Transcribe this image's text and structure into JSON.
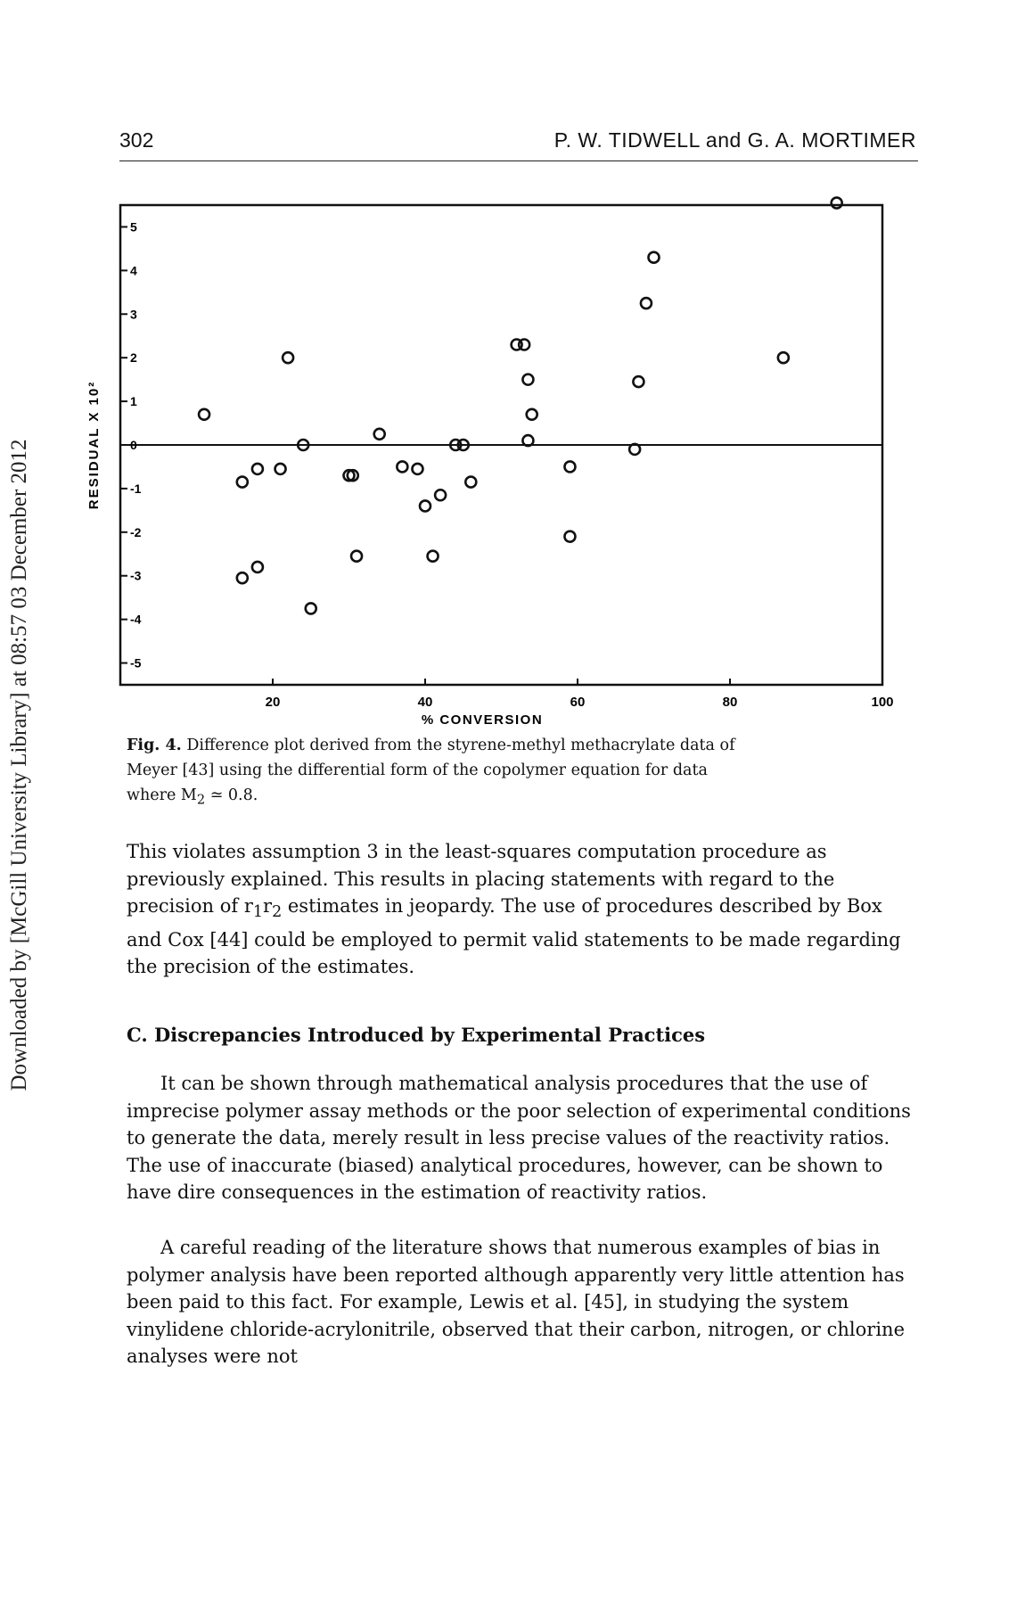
{
  "side_note": "Downloaded by [McGill University Library] at 08:57 03 December 2012",
  "header": {
    "page_number": "302",
    "authors": "P. W. TIDWELL and G. A. MORTIMER"
  },
  "chart_data": {
    "type": "scatter",
    "title": "",
    "xlabel": "% CONVERSION",
    "ylabel": "RESIDUAL X 10²",
    "xlim": [
      0,
      100
    ],
    "ylim": [
      -5.5,
      5.5
    ],
    "x_ticks": [
      20,
      40,
      60,
      80,
      100
    ],
    "x_tick_labels": [
      "20",
      "40",
      "60",
      "80",
      "100"
    ],
    "y_ticks": [
      5,
      4,
      3,
      2,
      1,
      0,
      -1,
      -2,
      -3,
      -4,
      -5
    ],
    "y_tick_labels": [
      "5",
      "4",
      "3",
      "2",
      "1",
      "0",
      "-1",
      "-2",
      "-3",
      "-4",
      "-5"
    ],
    "zero_line": true,
    "grid": false,
    "legend": "none",
    "series": [
      {
        "x": [
          11,
          16,
          18,
          21,
          22,
          16,
          18,
          24,
          25,
          30,
          30.5,
          34,
          37,
          39,
          40,
          42,
          44,
          46,
          45,
          31,
          41,
          52,
          53,
          53.5,
          54,
          53.5,
          59,
          59,
          70,
          69,
          68,
          67.5,
          87,
          94
        ],
        "y": [
          0.7,
          -0.85,
          -0.55,
          -0.55,
          2.0,
          -3.05,
          -2.8,
          0.0,
          -3.75,
          -0.7,
          -0.7,
          0.25,
          -0.5,
          -0.55,
          -1.4,
          -1.15,
          0.0,
          -0.85,
          0.0,
          -2.55,
          -2.55,
          2.3,
          2.3,
          1.5,
          0.7,
          0.1,
          -0.5,
          -2.1,
          4.3,
          3.25,
          1.45,
          -0.1,
          2.0,
          5.55
        ]
      }
    ]
  },
  "caption": {
    "label": "Fig. 4.",
    "lines": [
      "Difference plot derived from the styrene-methyl methacrylate data of",
      "Meyer [43] using the differential form of the copolymer equation for data",
      "where M",
      "2",
      " ≃ 0.8."
    ]
  },
  "body": {
    "p1": {
      "before": "This violates assumption 3 in the least-squares computation procedure as previously explained. This results in placing statements with regard to the precision of ",
      "r": "r",
      "sub1": "1",
      "r2": "r",
      "sub2": "2",
      "after": " estimates in jeopardy. The use of procedures described by Box and Cox [44] could be employed to permit valid statements to be made regarding the precision of the estimates."
    },
    "section_heading": "C. Discrepancies Introduced by Experimental Practices",
    "p2": "It can be shown through mathematical analysis procedures that the use of imprecise polymer assay methods or the poor selection of experimental conditions to generate the data, merely result in less precise values of the reactivity ratios. The use of inaccurate (biased) analytical procedures, however, can be shown to have dire consequences in the estimation of reactivity ratios.",
    "p3": "A careful reading of the literature shows that numerous examples of bias in polymer analysis have been reported although apparently very little attention has been paid to this fact. For example, Lewis et al. [45], in studying the system vinylidene chloride-acrylonitrile, observed that their carbon, nitrogen, or chlorine analyses were not"
  }
}
